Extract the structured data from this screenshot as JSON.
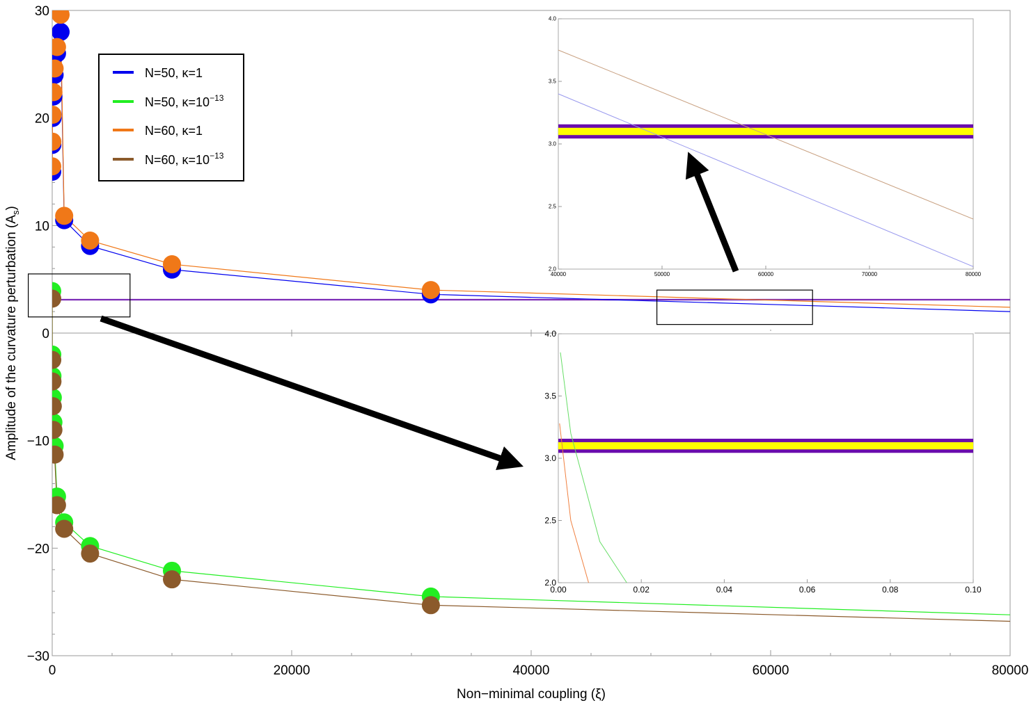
{
  "chart_data": {
    "type": "scatter",
    "xlabel": "Non−minimal coupling (ξ)",
    "ylabel": "Amplitude of the curvature perturbation (A",
    "ylabel_sub": "s",
    "ylabel_close": ")",
    "xlim": [
      0,
      80000
    ],
    "ylim": [
      -30,
      30
    ],
    "x_ticks": [
      0,
      20000,
      40000,
      60000,
      80000
    ],
    "x_tick_labels": [
      "0",
      "20000",
      "40000",
      "60000",
      "80000"
    ],
    "y_ticks": [
      -30,
      -20,
      -10,
      0,
      10,
      20,
      30
    ],
    "y_tick_labels": [
      "−30",
      "−20",
      "−10",
      "0",
      "10",
      "20",
      "30"
    ],
    "legend": {
      "placement": "top-left",
      "entries": [
        {
          "label": "N=50, κ=1",
          "sup": "",
          "color": "#0000ee"
        },
        {
          "label": "N=50, κ=10",
          "sup": "−13",
          "color": "#22ee22"
        },
        {
          "label": "N=60, κ=1",
          "sup": "",
          "color": "#f07818"
        },
        {
          "label": "N=60, κ=10",
          "sup": "−13",
          "color": "#8b5a2b"
        }
      ]
    },
    "series": [
      {
        "name": "N=50, κ=1",
        "color": "#0000ee",
        "x": [
          0.01,
          10,
          30,
          100,
          200,
          400,
          700,
          1000,
          3162,
          10000,
          31623,
          80000
        ],
        "y": [
          15,
          17.5,
          20,
          22,
          24,
          26,
          28,
          10.5,
          8.1,
          5.9,
          3.6,
          2.0
        ]
      },
      {
        "name": "N=60, κ=1",
        "color": "#f07818",
        "x": [
          0.01,
          10,
          30,
          100,
          200,
          400,
          700,
          1000,
          3162,
          10000,
          31623,
          80000
        ],
        "y": [
          15.5,
          17.8,
          20.3,
          22.4,
          24.6,
          26.6,
          29.6,
          10.9,
          8.6,
          6.4,
          4.0,
          2.4
        ]
      },
      {
        "name": "N=50, κ=10⁻¹³",
        "color": "#22ee22",
        "x": [
          0.001,
          5,
          20,
          50,
          100,
          200,
          400,
          1000,
          3162,
          10000,
          31623,
          80000
        ],
        "y": [
          3.9,
          -2.0,
          -4.0,
          -6.0,
          -8.3,
          -10.5,
          -15.2,
          -17.6,
          -19.8,
          -22.1,
          -24.5,
          -26.2
        ]
      },
      {
        "name": "N=60, κ=10⁻¹³",
        "color": "#8b5a2b",
        "x": [
          0.001,
          5,
          20,
          50,
          100,
          200,
          400,
          1000,
          3162,
          10000,
          31623,
          80000
        ],
        "y": [
          3.2,
          -2.5,
          -4.5,
          -6.8,
          -9.0,
          -11.3,
          -16.0,
          -18.2,
          -20.5,
          -22.9,
          -25.3,
          -26.8
        ]
      }
    ],
    "observed_band": {
      "center": 3.1,
      "low": 3.06,
      "high": 3.14,
      "line_color": "#6a0dad",
      "fill_color": "#ffff00"
    },
    "insets": [
      {
        "name": "inset-top",
        "xlim": [
          40000,
          80000
        ],
        "ylim": [
          2.0,
          4.0
        ],
        "x_ticks": [
          40000,
          50000,
          60000,
          70000,
          80000
        ],
        "x_tick_labels": [
          "40000",
          "50000",
          "60000",
          "70000",
          "80000"
        ],
        "y_ticks": [
          2.0,
          2.5,
          3.0,
          3.5,
          4.0
        ],
        "y_tick_labels": [
          "2.0",
          "2.5",
          "3.0",
          "3.5",
          "4.0"
        ],
        "lines": [
          {
            "color": "#9999ee",
            "x": [
              40000,
              80000
            ],
            "y": [
              3.4,
              2.02
            ]
          },
          {
            "color": "#c8a080",
            "x": [
              40000,
              80000
            ],
            "y": [
              3.75,
              2.4
            ]
          }
        ]
      },
      {
        "name": "inset-bottom",
        "xlim": [
          0,
          0.1
        ],
        "ylim": [
          2.0,
          4.0
        ],
        "x_ticks": [
          0,
          0.02,
          0.04,
          0.06,
          0.08,
          0.1
        ],
        "x_tick_labels": [
          "0.00",
          "0.02",
          "0.04",
          "0.06",
          "0.08",
          "0.10"
        ],
        "y_ticks": [
          2.0,
          2.5,
          3.0,
          3.5,
          4.0
        ],
        "y_tick_labels": [
          "2.0",
          "2.5",
          "3.0",
          "3.5",
          "4.0"
        ],
        "lines": [
          {
            "color": "#66dd66",
            "x": [
              0.0005,
              0.003,
              0.01,
              0.0165
            ],
            "y": [
              3.85,
              3.2,
              2.33,
              2.0
            ]
          },
          {
            "color": "#f08040",
            "x": [
              0.0003,
              0.003,
              0.0073
            ],
            "y": [
              3.28,
              2.5,
              2.0
            ]
          }
        ]
      }
    ],
    "zoom_regions": [
      {
        "name": "zoom-region-left",
        "x": [
          -2000,
          6500
        ],
        "y": [
          1.5,
          5.5
        ]
      },
      {
        "name": "zoom-region-right",
        "x": [
          50500,
          63500
        ],
        "y": [
          0.8,
          4.0
        ]
      }
    ]
  }
}
